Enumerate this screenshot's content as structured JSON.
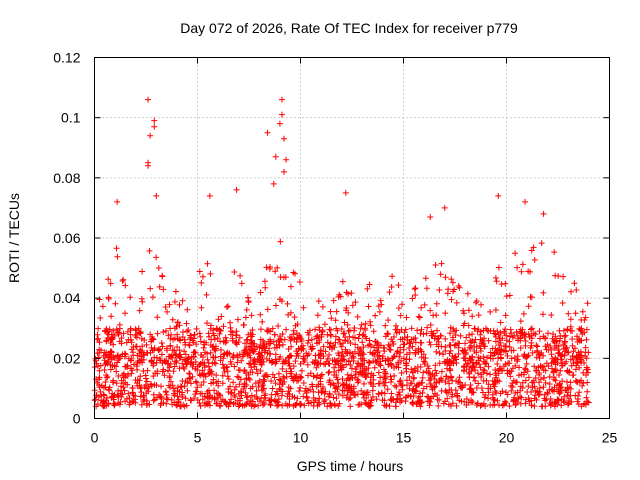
{
  "chart_data": {
    "type": "scatter",
    "title": "Day 072 of 2026, Rate Of TEC Index for receiver p779",
    "xlabel": "GPS time / hours",
    "ylabel": "ROTI / TECUs",
    "xlim": [
      0,
      25
    ],
    "ylim": [
      0,
      0.12
    ],
    "xticks": [
      0,
      5,
      10,
      15,
      20,
      25
    ],
    "xtick_labels": [
      "0",
      "5",
      "10",
      "15",
      "20",
      "25"
    ],
    "yticks": [
      0,
      0.02,
      0.04,
      0.06,
      0.08,
      0.1,
      0.12
    ],
    "ytick_labels": [
      "0",
      "0.02",
      "0.04",
      "0.06",
      "0.08",
      "0.1",
      "0.12"
    ],
    "grid": true,
    "marker": "+",
    "series": [
      {
        "name": "ROTI",
        "color": "#ff0000",
        "notable_points": [
          {
            "x": 2.6,
            "y": 0.106
          },
          {
            "x": 2.7,
            "y": 0.094
          },
          {
            "x": 2.9,
            "y": 0.099
          },
          {
            "x": 2.9,
            "y": 0.097
          },
          {
            "x": 2.6,
            "y": 0.085
          },
          {
            "x": 2.6,
            "y": 0.084
          },
          {
            "x": 3.0,
            "y": 0.074
          },
          {
            "x": 9.1,
            "y": 0.106
          },
          {
            "x": 9.1,
            "y": 0.101
          },
          {
            "x": 9.0,
            "y": 0.098
          },
          {
            "x": 9.2,
            "y": 0.093
          },
          {
            "x": 8.4,
            "y": 0.095
          },
          {
            "x": 9.3,
            "y": 0.086
          },
          {
            "x": 9.2,
            "y": 0.082
          },
          {
            "x": 8.7,
            "y": 0.078
          },
          {
            "x": 8.8,
            "y": 0.087
          },
          {
            "x": 5.6,
            "y": 0.074
          },
          {
            "x": 6.9,
            "y": 0.076
          },
          {
            "x": 12.2,
            "y": 0.075
          },
          {
            "x": 19.6,
            "y": 0.074
          },
          {
            "x": 20.9,
            "y": 0.072
          },
          {
            "x": 17.0,
            "y": 0.07
          },
          {
            "x": 1.1,
            "y": 0.072
          },
          {
            "x": 16.3,
            "y": 0.067
          },
          {
            "x": 21.8,
            "y": 0.068
          }
        ],
        "envelope": [
          {
            "x": 0.0,
            "upper": 0.05
          },
          {
            "x": 0.5,
            "upper": 0.04
          },
          {
            "x": 1.0,
            "upper": 0.06
          },
          {
            "x": 1.5,
            "upper": 0.045
          },
          {
            "x": 2.0,
            "upper": 0.04
          },
          {
            "x": 2.5,
            "upper": 0.055
          },
          {
            "x": 3.0,
            "upper": 0.06
          },
          {
            "x": 3.5,
            "upper": 0.045
          },
          {
            "x": 4.0,
            "upper": 0.045
          },
          {
            "x": 4.5,
            "upper": 0.042
          },
          {
            "x": 5.0,
            "upper": 0.05
          },
          {
            "x": 5.5,
            "upper": 0.055
          },
          {
            "x": 6.0,
            "upper": 0.04
          },
          {
            "x": 6.5,
            "upper": 0.045
          },
          {
            "x": 7.0,
            "upper": 0.055
          },
          {
            "x": 7.5,
            "upper": 0.04
          },
          {
            "x": 8.0,
            "upper": 0.04
          },
          {
            "x": 8.5,
            "upper": 0.06
          },
          {
            "x": 9.0,
            "upper": 0.062
          },
          {
            "x": 9.5,
            "upper": 0.055
          },
          {
            "x": 10.0,
            "upper": 0.05
          },
          {
            "x": 10.5,
            "upper": 0.04
          },
          {
            "x": 11.0,
            "upper": 0.045
          },
          {
            "x": 11.5,
            "upper": 0.04
          },
          {
            "x": 12.0,
            "upper": 0.055
          },
          {
            "x": 12.5,
            "upper": 0.045
          },
          {
            "x": 13.0,
            "upper": 0.04
          },
          {
            "x": 13.5,
            "upper": 0.05
          },
          {
            "x": 14.0,
            "upper": 0.045
          },
          {
            "x": 14.5,
            "upper": 0.05
          },
          {
            "x": 15.0,
            "upper": 0.05
          },
          {
            "x": 15.5,
            "upper": 0.045
          },
          {
            "x": 16.0,
            "upper": 0.045
          },
          {
            "x": 16.5,
            "upper": 0.055
          },
          {
            "x": 17.0,
            "upper": 0.05
          },
          {
            "x": 17.5,
            "upper": 0.045
          },
          {
            "x": 18.0,
            "upper": 0.05
          },
          {
            "x": 18.5,
            "upper": 0.045
          },
          {
            "x": 19.0,
            "upper": 0.045
          },
          {
            "x": 19.5,
            "upper": 0.055
          },
          {
            "x": 20.0,
            "upper": 0.06
          },
          {
            "x": 20.5,
            "upper": 0.055
          },
          {
            "x": 21.0,
            "upper": 0.055
          },
          {
            "x": 21.5,
            "upper": 0.06
          },
          {
            "x": 22.0,
            "upper": 0.06
          },
          {
            "x": 22.5,
            "upper": 0.055
          },
          {
            "x": 23.0,
            "upper": 0.05
          },
          {
            "x": 23.5,
            "upper": 0.045
          },
          {
            "x": 24.0,
            "upper": 0.04
          }
        ],
        "baseline_range": [
          0.004,
          0.03
        ]
      }
    ]
  }
}
